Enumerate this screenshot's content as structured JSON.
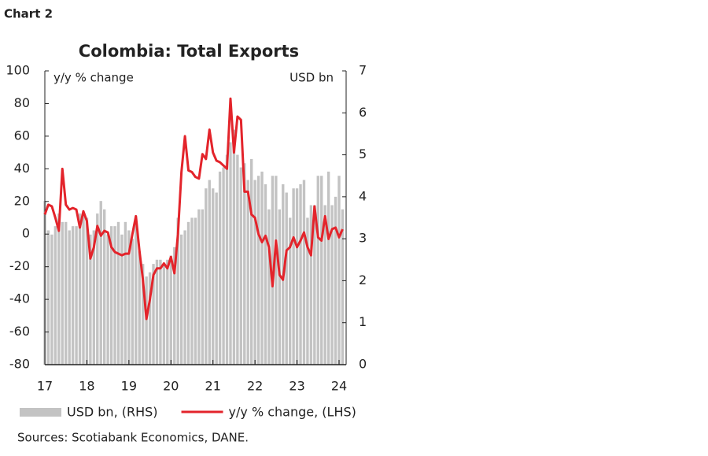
{
  "chart_label": "Chart 2",
  "source": "Sources: Scotiabank Economics, DANE.",
  "chart_data": {
    "type": "bar",
    "title": "Colombia: Total Exports",
    "ylabel": "y/y % change",
    "y2label": "USD bn",
    "categories": [
      "17",
      null,
      null,
      null,
      null,
      null,
      null,
      null,
      null,
      null,
      null,
      null,
      "18",
      null,
      null,
      null,
      null,
      null,
      null,
      null,
      null,
      null,
      null,
      null,
      "19",
      null,
      null,
      null,
      null,
      null,
      null,
      null,
      null,
      null,
      null,
      null,
      "20",
      null,
      null,
      null,
      null,
      null,
      null,
      null,
      null,
      null,
      null,
      null,
      "21",
      null,
      null,
      null,
      null,
      null,
      null,
      null,
      null,
      null,
      null,
      null,
      "22",
      null,
      null,
      null,
      null,
      null,
      null,
      null,
      null,
      null,
      null,
      null,
      "23",
      null,
      null,
      null,
      null,
      null,
      null,
      null,
      null,
      null,
      null,
      null,
      "24",
      null
    ],
    "series": [
      {
        "name": "USD bn, (RHS)",
        "type": "bar",
        "axis": "y2",
        "color": "#c3c3c3",
        "values": [
          3.9,
          3.2,
          3.1,
          3.3,
          3.6,
          3.4,
          3.4,
          3.2,
          3.3,
          3.3,
          3.6,
          3.6,
          3.5,
          3.1,
          3.2,
          3.6,
          3.9,
          3.7,
          3.1,
          3.3,
          3.3,
          3.4,
          3.1,
          3.4,
          3.2,
          3.0,
          3.4,
          2.7,
          2.4,
          2.1,
          2.2,
          2.4,
          2.5,
          2.5,
          2.4,
          2.5,
          2.6,
          2.8,
          3.5,
          3.1,
          3.2,
          3.4,
          3.5,
          3.5,
          3.7,
          3.7,
          4.2,
          4.4,
          4.2,
          4.1,
          4.6,
          4.7,
          5.0,
          5.3,
          5.6,
          5.0,
          4.7,
          4.8,
          4.4,
          4.9,
          4.4,
          4.5,
          4.6,
          4.3,
          3.7,
          4.5,
          4.5,
          3.7,
          4.3,
          4.1,
          3.5,
          4.2,
          4.2,
          4.3,
          4.4,
          3.5,
          3.8,
          3.8,
          4.5,
          4.5,
          3.8,
          4.6,
          3.8,
          4.0,
          4.5,
          3.7
        ]
      },
      {
        "name": "y/y % change, (LHS)",
        "type": "line",
        "axis": "y",
        "color": "#e3242b",
        "values": [
          12,
          18,
          17,
          10,
          2,
          40,
          18,
          15,
          16,
          15,
          4,
          14,
          8,
          -15,
          -8,
          5,
          -1,
          2,
          1,
          -8,
          -11,
          -12,
          -13,
          -12,
          -12,
          0,
          11,
          -10,
          -28,
          -52,
          -40,
          -25,
          -21,
          -21,
          -18,
          -21,
          -14,
          -24,
          0,
          38,
          60,
          39,
          38,
          35,
          34,
          49,
          46,
          64,
          50,
          45,
          44,
          42,
          40,
          83,
          50,
          72,
          70,
          26,
          26,
          12,
          10,
          0,
          -5,
          -1,
          -8,
          -32,
          -4,
          -25,
          -28,
          -10,
          -8,
          -2,
          -8,
          -4,
          1,
          -8,
          -13,
          17,
          -2,
          -4,
          11,
          -3,
          3,
          4,
          -2,
          3
        ]
      }
    ],
    "ylim": [
      -80,
      100
    ],
    "yticks": [
      -80,
      -60,
      -40,
      -20,
      0,
      20,
      40,
      60,
      80,
      100
    ],
    "y2lim": [
      0,
      7
    ],
    "y2ticks": [
      0,
      1,
      2,
      3,
      4,
      5,
      6,
      7
    ]
  }
}
